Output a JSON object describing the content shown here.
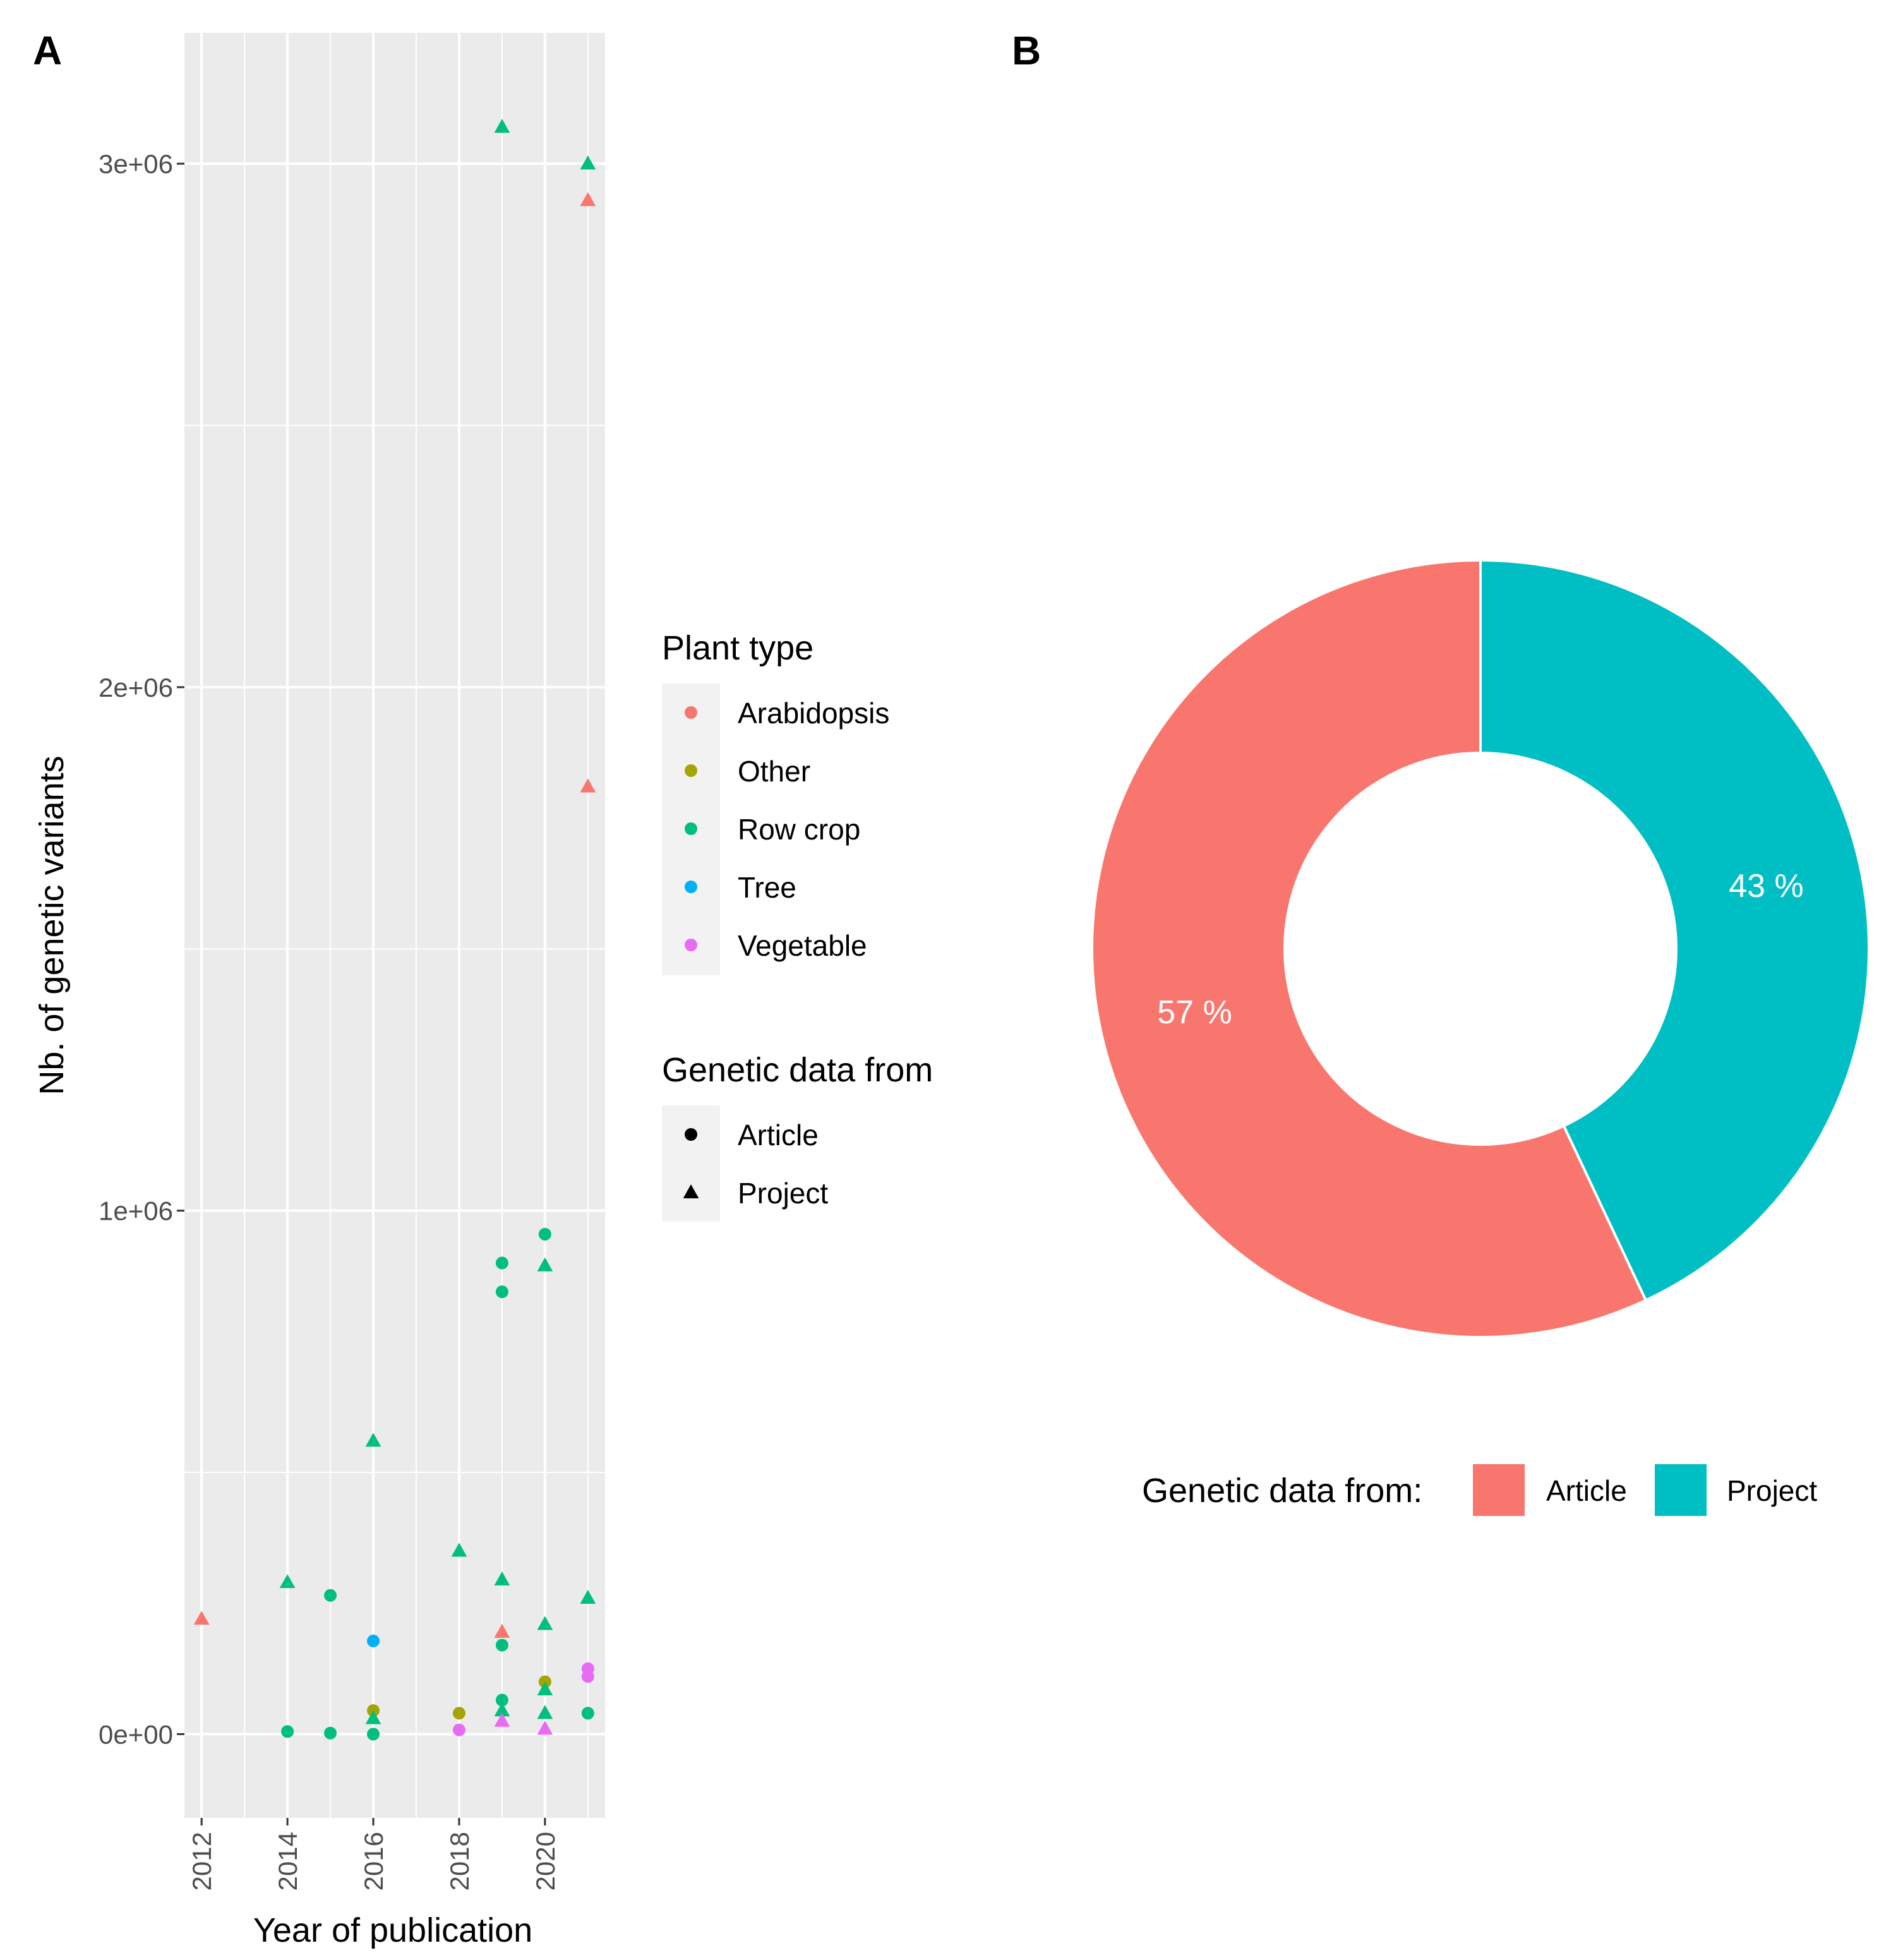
{
  "chart_data": [
    {
      "panel_label": "A",
      "type": "scatter",
      "xlabel": "Year of publication",
      "ylabel": "Nb. of genetic variants",
      "xlim": [
        2011.6,
        2021.4
      ],
      "ylim": [
        -160000,
        3250000
      ],
      "x_ticks": [
        {
          "value": 2012,
          "label": "2012"
        },
        {
          "value": 2014,
          "label": "2014"
        },
        {
          "value": 2016,
          "label": "2016"
        },
        {
          "value": 2018,
          "label": "2018"
        },
        {
          "value": 2020,
          "label": "2020"
        }
      ],
      "y_ticks": [
        {
          "value": 0,
          "label": "0e+00"
        },
        {
          "value": 1000000,
          "label": "1e+06"
        },
        {
          "value": 2000000,
          "label": "2e+06"
        },
        {
          "value": 3000000,
          "label": "3e+06"
        }
      ],
      "grid": true,
      "colors": {
        "Arabidopsis": "#F8766D",
        "Other": "#A3A500",
        "Row crop": "#00BF7D",
        "Tree": "#00B0F6",
        "Vegetable": "#E76BF3"
      },
      "legend": [
        {
          "title": "Plant type",
          "kind": "color",
          "items": [
            "Arabidopsis",
            "Other",
            "Row crop",
            "Tree",
            "Vegetable"
          ]
        },
        {
          "title": "Genetic data from",
          "kind": "shape",
          "items": [
            {
              "label": "Article",
              "shape": "circle"
            },
            {
              "label": "Project",
              "shape": "triangle"
            }
          ]
        }
      ],
      "points": [
        {
          "x": 2012,
          "y": 220000,
          "plant": "Arabidopsis",
          "source": "Project"
        },
        {
          "x": 2014,
          "y": 290000,
          "plant": "Row crop",
          "source": "Project"
        },
        {
          "x": 2014,
          "y": 5000,
          "plant": "Row crop",
          "source": "Article"
        },
        {
          "x": 2015,
          "y": 265000,
          "plant": "Row crop",
          "source": "Article"
        },
        {
          "x": 2015,
          "y": 2000,
          "plant": "Row crop",
          "source": "Article"
        },
        {
          "x": 2016,
          "y": 560000,
          "plant": "Row crop",
          "source": "Project"
        },
        {
          "x": 2016,
          "y": 178000,
          "plant": "Tree",
          "source": "Article"
        },
        {
          "x": 2016,
          "y": 45000,
          "plant": "Other",
          "source": "Article"
        },
        {
          "x": 2016,
          "y": 30000,
          "plant": "Row crop",
          "source": "Project"
        },
        {
          "x": 2016,
          "y": 0,
          "plant": "Row crop",
          "source": "Article"
        },
        {
          "x": 2018,
          "y": 350000,
          "plant": "Row crop",
          "source": "Project"
        },
        {
          "x": 2018,
          "y": 40000,
          "plant": "Other",
          "source": "Article"
        },
        {
          "x": 2018,
          "y": 8000,
          "plant": "Vegetable",
          "source": "Article"
        },
        {
          "x": 2019,
          "y": 3070000,
          "plant": "Row crop",
          "source": "Project"
        },
        {
          "x": 2019,
          "y": 900000,
          "plant": "Row crop",
          "source": "Article"
        },
        {
          "x": 2019,
          "y": 845000,
          "plant": "Row crop",
          "source": "Article"
        },
        {
          "x": 2019,
          "y": 295000,
          "plant": "Row crop",
          "source": "Project"
        },
        {
          "x": 2019,
          "y": 195000,
          "plant": "Arabidopsis",
          "source": "Project"
        },
        {
          "x": 2019,
          "y": 170000,
          "plant": "Row crop",
          "source": "Article"
        },
        {
          "x": 2019,
          "y": 65000,
          "plant": "Row crop",
          "source": "Article"
        },
        {
          "x": 2019,
          "y": 45000,
          "plant": "Row crop",
          "source": "Project"
        },
        {
          "x": 2019,
          "y": 25000,
          "plant": "Vegetable",
          "source": "Project"
        },
        {
          "x": 2020,
          "y": 955000,
          "plant": "Row crop",
          "source": "Article"
        },
        {
          "x": 2020,
          "y": 895000,
          "plant": "Row crop",
          "source": "Project"
        },
        {
          "x": 2020,
          "y": 210000,
          "plant": "Row crop",
          "source": "Project"
        },
        {
          "x": 2020,
          "y": 100000,
          "plant": "Other",
          "source": "Article"
        },
        {
          "x": 2020,
          "y": 85000,
          "plant": "Row crop",
          "source": "Project"
        },
        {
          "x": 2020,
          "y": 40000,
          "plant": "Row crop",
          "source": "Project"
        },
        {
          "x": 2020,
          "y": 10000,
          "plant": "Vegetable",
          "source": "Project"
        },
        {
          "x": 2021,
          "y": 3000000,
          "plant": "Row crop",
          "source": "Project"
        },
        {
          "x": 2021,
          "y": 2930000,
          "plant": "Arabidopsis",
          "source": "Project"
        },
        {
          "x": 2021,
          "y": 1810000,
          "plant": "Arabidopsis",
          "source": "Project"
        },
        {
          "x": 2021,
          "y": 260000,
          "plant": "Row crop",
          "source": "Project"
        },
        {
          "x": 2021,
          "y": 125000,
          "plant": "Vegetable",
          "source": "Article"
        },
        {
          "x": 2021,
          "y": 110000,
          "plant": "Vegetable",
          "source": "Article"
        },
        {
          "x": 2021,
          "y": 40000,
          "plant": "Row crop",
          "source": "Article"
        }
      ]
    },
    {
      "panel_label": "B",
      "type": "pie",
      "donut": true,
      "slices": [
        {
          "label": "Article",
          "value": 57,
          "text": "57 %",
          "color": "#F8766D"
        },
        {
          "label": "Project",
          "value": 43,
          "text": "43 %",
          "color": "#00BFC4"
        }
      ],
      "legend_title": "Genetic data from:",
      "legend_position": "bottom"
    }
  ]
}
